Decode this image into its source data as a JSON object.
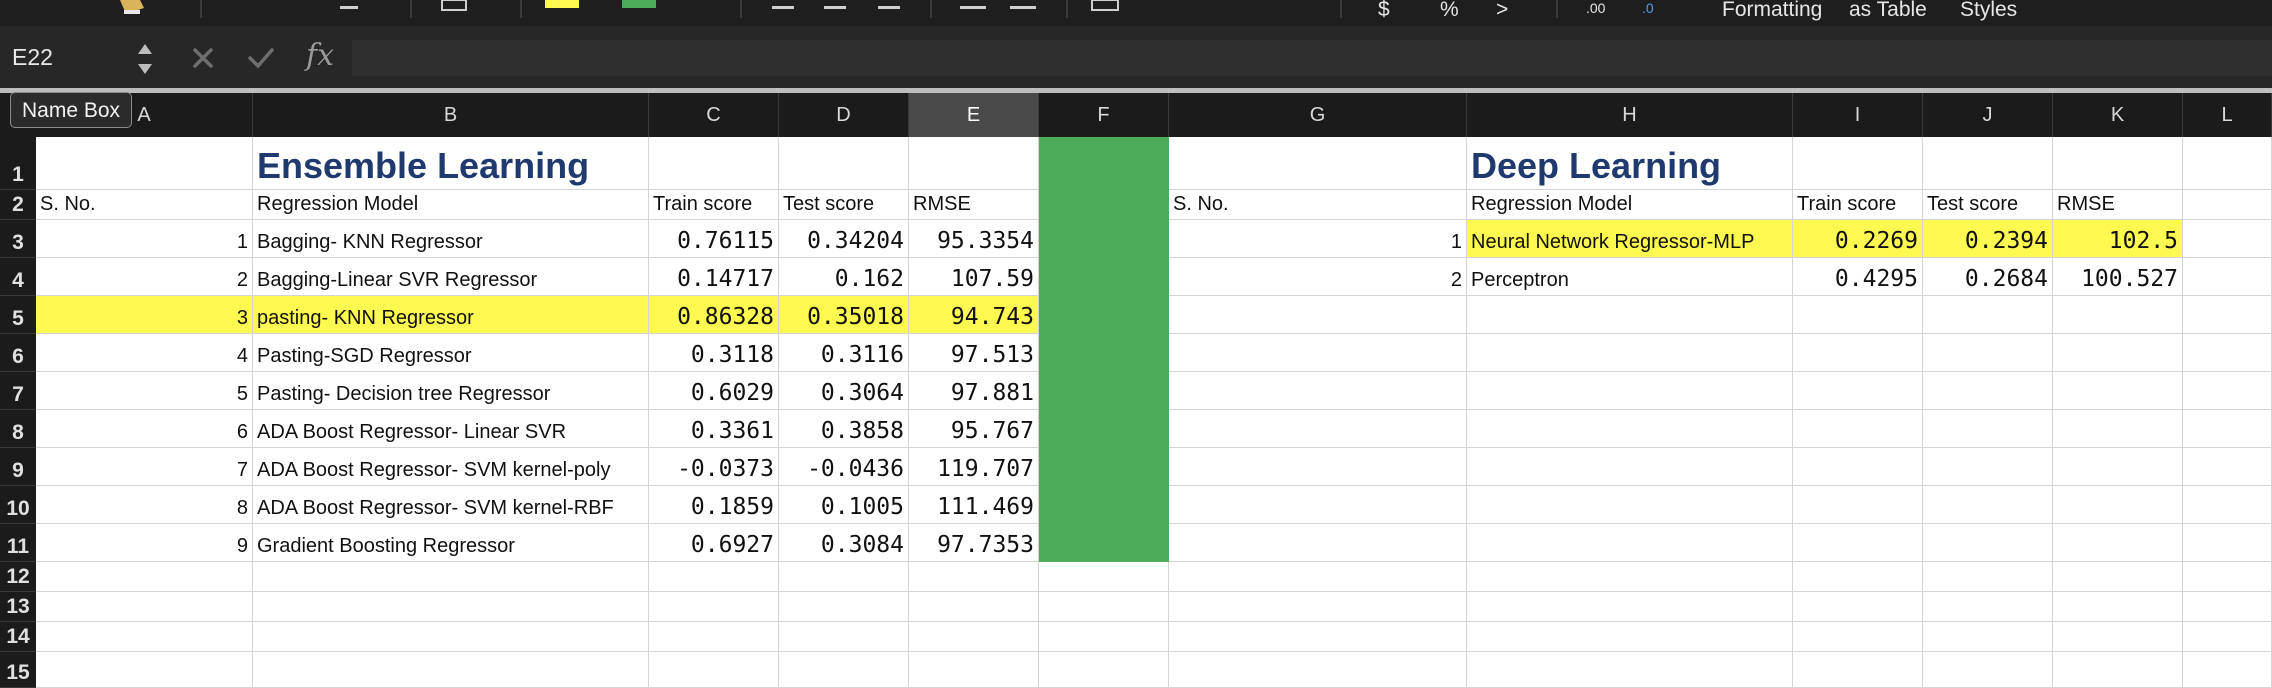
{
  "ribbon": {
    "format_label_1": "Formatting",
    "format_label_2": "as Table",
    "format_label_3": "Styles",
    "fill_color_yellow": "#fdf950",
    "fill_color_green": "#4dac5a"
  },
  "formula_bar": {
    "name_box_value": "E22",
    "fx_label": "fx",
    "formula_value": ""
  },
  "tooltip": {
    "text": "Name Box"
  },
  "selected_column": "E",
  "columns": [
    "A",
    "B",
    "C",
    "D",
    "E",
    "F",
    "G",
    "H",
    "I",
    "J",
    "K",
    "L"
  ],
  "rows": [
    "1",
    "2",
    "3",
    "4",
    "5",
    "6",
    "7",
    "8",
    "9",
    "10",
    "11",
    "12",
    "13",
    "14",
    "15"
  ],
  "ensemble": {
    "title": "Ensemble Learning",
    "headers": {
      "sno": "S. No.",
      "model": "Regression Model",
      "train": "Train score",
      "test": "Test score",
      "rmse": "RMSE"
    },
    "rows": [
      {
        "sno": "1",
        "model": "Bagging- KNN Regressor",
        "train": "0.76115",
        "test": "0.34204",
        "rmse": "95.3354"
      },
      {
        "sno": "2",
        "model": "Bagging-Linear SVR Regressor",
        "train": "0.14717",
        "test": "0.162",
        "rmse": "107.59"
      },
      {
        "sno": "3",
        "model": "pasting- KNN Regressor",
        "train": "0.86328",
        "test": "0.35018",
        "rmse": "94.743"
      },
      {
        "sno": "4",
        "model": "Pasting-SGD Regressor",
        "train": "0.3118",
        "test": "0.3116",
        "rmse": "97.513"
      },
      {
        "sno": "5",
        "model": "Pasting- Decision tree Regressor",
        "train": "0.6029",
        "test": "0.3064",
        "rmse": "97.881"
      },
      {
        "sno": "6",
        "model": "ADA Boost Regressor- Linear SVR",
        "train": "0.3361",
        "test": "0.3858",
        "rmse": "95.767"
      },
      {
        "sno": "7",
        "model": "ADA Boost Regressor- SVM  kernel-poly",
        "train": "-0.0373",
        "test": "-0.0436",
        "rmse": "119.707"
      },
      {
        "sno": "8",
        "model": "ADA Boost Regressor- SVM kernel-RBF",
        "train": "0.1859",
        "test": "0.1005",
        "rmse": "111.469"
      },
      {
        "sno": "9",
        "model": "Gradient Boosting Regressor",
        "train": "0.6927",
        "test": "0.3084",
        "rmse": "97.7353"
      }
    ],
    "highlighted_row": 3
  },
  "deep": {
    "title": "Deep Learning",
    "headers": {
      "sno": "S. No.",
      "model": "Regression Model",
      "train": "Train score",
      "test": "Test score",
      "rmse": "RMSE"
    },
    "rows": [
      {
        "sno": "1",
        "model": "Neural Network Regressor-MLP",
        "train": "0.2269",
        "test": "0.2394",
        "rmse": "102.5"
      },
      {
        "sno": "2",
        "model": "Perceptron",
        "train": "0.4295",
        "test": "0.2684",
        "rmse": "100.527"
      }
    ],
    "highlighted_row": 1
  }
}
